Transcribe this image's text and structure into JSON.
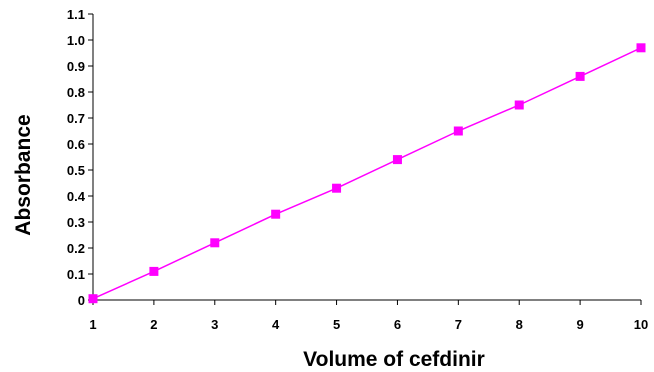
{
  "chart_data": {
    "type": "line",
    "title": "",
    "xlabel": "Volume of cefdinir",
    "ylabel": "Absorbance",
    "x": [
      1,
      2,
      3,
      4,
      5,
      6,
      7,
      8,
      9,
      10
    ],
    "xticks": [
      "1",
      "2",
      "3",
      "4",
      "5",
      "6",
      "7",
      "8",
      "9",
      "10"
    ],
    "yticks": [
      "0",
      "0.1",
      "0.2",
      "0.3",
      "0.4",
      "0.5",
      "0.6",
      "0.7",
      "0.8",
      "0.9",
      "1.0",
      "1.1"
    ],
    "ylim": [
      0,
      1.1
    ],
    "grid": false,
    "legend": "none",
    "series": [
      {
        "values": [
          0.005,
          0.11,
          0.22,
          0.33,
          0.43,
          0.54,
          0.65,
          0.75,
          0.86,
          0.97
        ],
        "color": "#ff00ff",
        "marker": "square"
      }
    ]
  }
}
